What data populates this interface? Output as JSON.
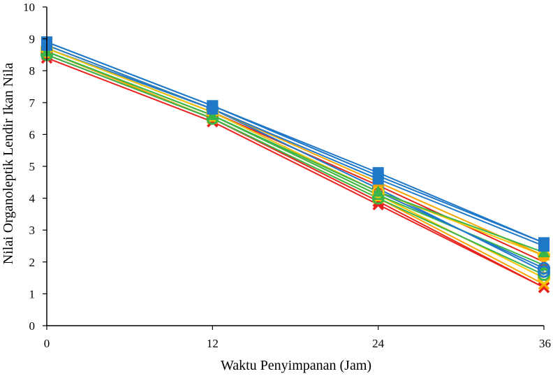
{
  "chart_data": {
    "type": "line",
    "title": "",
    "xlabel": "Waktu Penyimpanan (Jam)",
    "ylabel": "Nilai Organoleptik Lendir Ikan Nila",
    "x": [
      0,
      12,
      24,
      36
    ],
    "xticks": [
      "0",
      "12",
      "24",
      "36"
    ],
    "yticks": [
      "0",
      "1",
      "2",
      "3",
      "4",
      "5",
      "6",
      "7",
      "8",
      "9",
      "10"
    ],
    "xlim": [
      0,
      36
    ],
    "ylim": [
      0,
      10
    ],
    "grid": false,
    "legend": "none",
    "series": [
      {
        "values": [
          8.4,
          6.4,
          3.8,
          1.2
        ],
        "color": "#e8231e",
        "marker": "x"
      },
      {
        "values": [
          8.5,
          6.5,
          3.9,
          1.2
        ],
        "color": "#e8231e",
        "marker": "x"
      },
      {
        "values": [
          8.6,
          6.5,
          4.0,
          1.3
        ],
        "color": "#f7a600",
        "marker": "x"
      },
      {
        "values": [
          8.6,
          6.6,
          4.1,
          1.5
        ],
        "color": "#f7c600",
        "marker": "circle"
      },
      {
        "values": [
          8.5,
          6.5,
          4.0,
          1.6
        ],
        "color": "#3ab54a",
        "marker": "circle"
      },
      {
        "values": [
          8.6,
          6.6,
          4.1,
          1.9
        ],
        "color": "#3ab54a",
        "marker": "triangle"
      },
      {
        "values": [
          8.7,
          6.7,
          4.4,
          2.0
        ],
        "color": "#e8231e",
        "marker": "x"
      },
      {
        "values": [
          8.7,
          6.7,
          4.2,
          1.8
        ],
        "color": "#1f78c8",
        "marker": "circle"
      },
      {
        "values": [
          8.7,
          6.8,
          4.3,
          1.7
        ],
        "color": "#1f78c8",
        "marker": "circle"
      },
      {
        "values": [
          8.7,
          6.7,
          4.2,
          2.2
        ],
        "color": "#f7c600",
        "marker": "circle"
      },
      {
        "values": [
          8.8,
          6.8,
          4.5,
          2.2
        ],
        "color": "#f7a600",
        "marker": "triangle"
      },
      {
        "values": [
          8.6,
          6.6,
          4.2,
          2.3
        ],
        "color": "#3ab54a",
        "marker": "triangle"
      },
      {
        "values": [
          8.8,
          6.8,
          4.6,
          2.5
        ],
        "color": "#1f78c8",
        "marker": "square"
      },
      {
        "values": [
          8.9,
          6.9,
          4.7,
          2.6
        ],
        "color": "#1f78c8",
        "marker": "square"
      },
      {
        "values": [
          8.9,
          6.9,
          4.8,
          2.6
        ],
        "color": "#1f78c8",
        "marker": "square"
      }
    ]
  }
}
